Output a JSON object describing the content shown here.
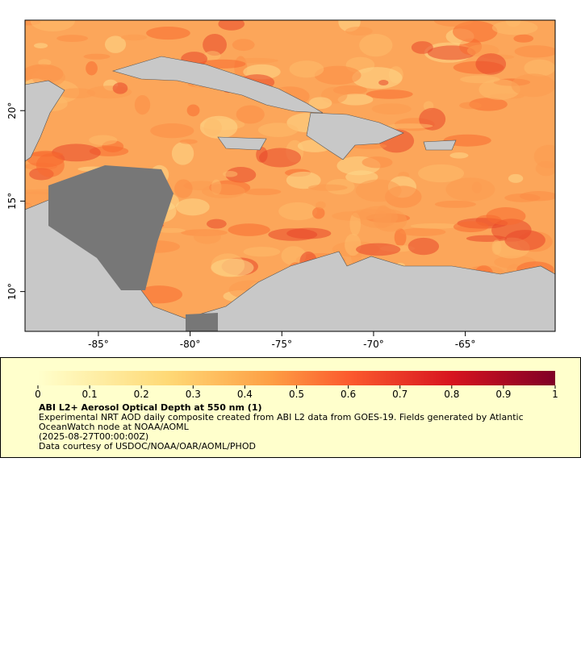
{
  "map": {
    "xlim": [
      -89,
      -60.1
    ],
    "ylim": [
      7.8,
      25
    ],
    "xticks": [
      {
        "value": -85,
        "label": "-85°"
      },
      {
        "value": -80,
        "label": "-80°"
      },
      {
        "value": -75,
        "label": "-75°"
      },
      {
        "value": -70,
        "label": "-70°"
      },
      {
        "value": -65,
        "label": "-65°"
      }
    ],
    "yticks": [
      {
        "value": 20,
        "label": "20°"
      },
      {
        "value": 15,
        "label": "15°"
      },
      {
        "value": 10,
        "label": "10°"
      }
    ]
  },
  "colorbar": {
    "range": [
      0,
      1
    ],
    "ticks": [
      0,
      0.1,
      0.2,
      0.3,
      0.4,
      0.5,
      0.6,
      0.7,
      0.8,
      0.9,
      1
    ]
  },
  "legend": {
    "title": "ABI L2+ Aerosol Optical Depth at 550 nm (1)",
    "description": "Experimental NRT AOD daily composite created from ABI L2 data from GOES-19. Fields generated by Atlantic OceanWatch node at NOAA/AOML",
    "time": "(2025-08-27T00:00:00Z)",
    "credit": "Data courtesy of USDOC/NOAA/OAR/AOML/PHOD"
  }
}
